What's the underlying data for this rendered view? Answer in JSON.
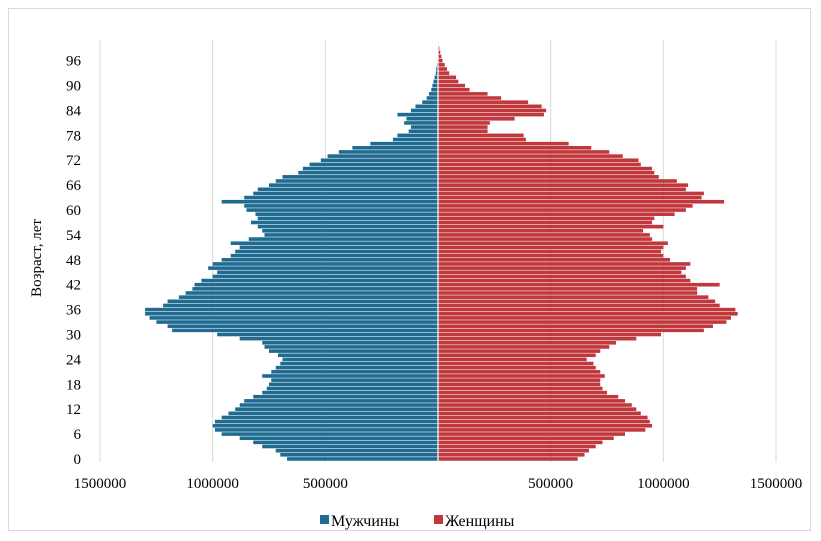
{
  "chart_data": {
    "type": "bar",
    "orientation": "horizontal",
    "layout": "population-pyramid",
    "title": "",
    "xlabel": "",
    "ylabel": "Возраст, лет",
    "xlim": [
      -1500000,
      1500000
    ],
    "x_tick_values": [
      -1500000,
      -1000000,
      -500000,
      500000,
      1000000,
      1500000
    ],
    "x_tick_labels": [
      "1500000",
      "1000000",
      "500000",
      "500000",
      "1000000",
      "1500000"
    ],
    "y_tick_labels": [
      "0",
      "6",
      "12",
      "18",
      "24",
      "30",
      "36",
      "42",
      "48",
      "54",
      "60",
      "66",
      "72",
      "78",
      "84",
      "90",
      "96"
    ],
    "grid": "vertical",
    "legend_position": "bottom",
    "ages": [
      0,
      1,
      2,
      3,
      4,
      5,
      6,
      7,
      8,
      9,
      10,
      11,
      12,
      13,
      14,
      15,
      16,
      17,
      18,
      19,
      20,
      21,
      22,
      23,
      24,
      25,
      26,
      27,
      28,
      29,
      30,
      31,
      32,
      33,
      34,
      35,
      36,
      37,
      38,
      39,
      40,
      41,
      42,
      43,
      44,
      45,
      46,
      47,
      48,
      49,
      50,
      51,
      52,
      53,
      54,
      55,
      56,
      57,
      58,
      59,
      60,
      61,
      62,
      63,
      64,
      65,
      66,
      67,
      68,
      69,
      70,
      71,
      72,
      73,
      74,
      75,
      76,
      77,
      78,
      79,
      80,
      81,
      82,
      83,
      84,
      85,
      86,
      87,
      88,
      89,
      90,
      91,
      92,
      93,
      94,
      95,
      96,
      97,
      98,
      99,
      100
    ],
    "series": [
      {
        "name": "Мужчины",
        "color": "#1f6b91",
        "values": [
          670000,
          700000,
          720000,
          780000,
          820000,
          880000,
          960000,
          990000,
          1000000,
          990000,
          960000,
          930000,
          900000,
          880000,
          860000,
          820000,
          780000,
          760000,
          750000,
          740000,
          780000,
          740000,
          720000,
          700000,
          690000,
          710000,
          750000,
          770000,
          780000,
          880000,
          980000,
          1180000,
          1200000,
          1250000,
          1280000,
          1300000,
          1300000,
          1220000,
          1200000,
          1150000,
          1120000,
          1090000,
          1080000,
          1050000,
          1000000,
          980000,
          1020000,
          1000000,
          960000,
          920000,
          900000,
          880000,
          920000,
          840000,
          770000,
          780000,
          800000,
          830000,
          800000,
          810000,
          850000,
          860000,
          960000,
          860000,
          820000,
          800000,
          750000,
          720000,
          690000,
          620000,
          600000,
          570000,
          520000,
          490000,
          440000,
          380000,
          300000,
          200000,
          180000,
          130000,
          120000,
          150000,
          140000,
          180000,
          120000,
          100000,
          70000,
          50000,
          40000,
          30000,
          25000,
          20000,
          15000,
          10000,
          8000,
          5000,
          3000,
          2000,
          1000,
          500,
          200
        ]
      },
      {
        "name": "Женщины",
        "color": "#c0373c",
        "values": [
          620000,
          650000,
          670000,
          700000,
          730000,
          780000,
          830000,
          920000,
          950000,
          940000,
          930000,
          900000,
          880000,
          860000,
          830000,
          800000,
          750000,
          730000,
          720000,
          720000,
          740000,
          720000,
          700000,
          690000,
          660000,
          700000,
          720000,
          760000,
          790000,
          880000,
          990000,
          1180000,
          1220000,
          1280000,
          1300000,
          1330000,
          1320000,
          1250000,
          1230000,
          1200000,
          1150000,
          1150000,
          1250000,
          1120000,
          1100000,
          1080000,
          1100000,
          1120000,
          1030000,
          1000000,
          990000,
          1000000,
          1020000,
          950000,
          940000,
          910000,
          1000000,
          950000,
          960000,
          1050000,
          1100000,
          1130000,
          1270000,
          1170000,
          1180000,
          1100000,
          1110000,
          1060000,
          980000,
          960000,
          950000,
          900000,
          890000,
          820000,
          760000,
          680000,
          580000,
          390000,
          380000,
          220000,
          220000,
          230000,
          340000,
          470000,
          480000,
          460000,
          400000,
          280000,
          220000,
          140000,
          120000,
          90000,
          80000,
          50000,
          40000,
          30000,
          20000,
          15000,
          10000,
          6000,
          3000
        ]
      }
    ]
  }
}
